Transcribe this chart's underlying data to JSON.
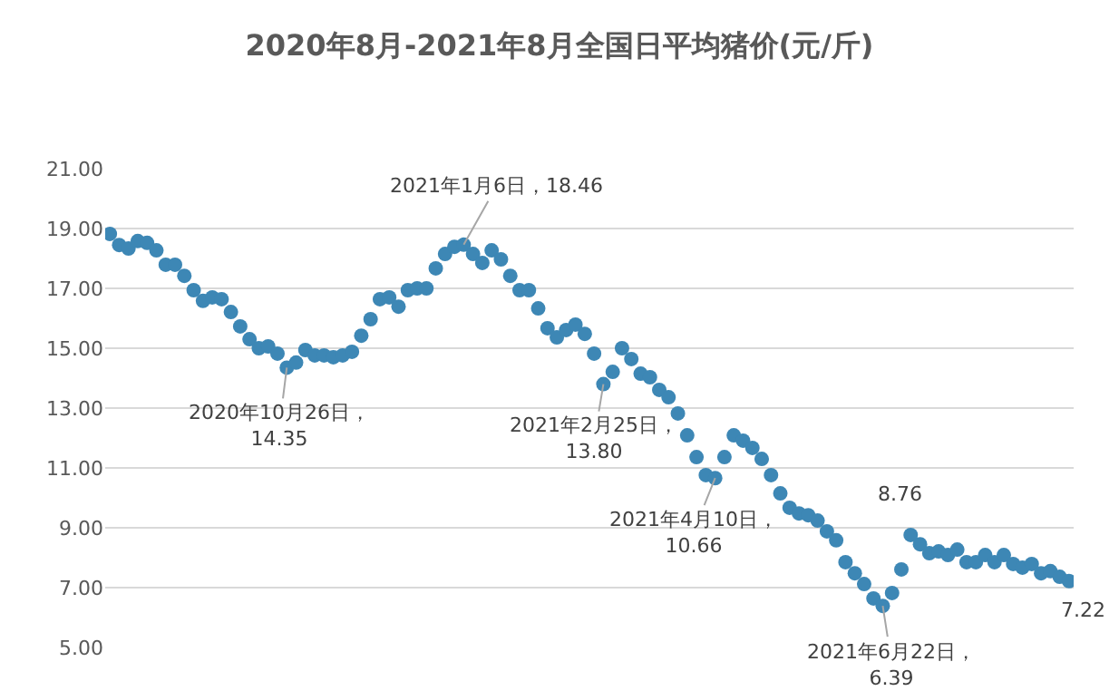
{
  "chart_data": {
    "type": "scatter",
    "title": "2020年8月-2021年8月全国日平均猪价(元/斤)",
    "categories": [
      null,
      null,
      null,
      null,
      null,
      null,
      null,
      null,
      null,
      null,
      null,
      null,
      null,
      null,
      null,
      null,
      null,
      null,
      null,
      null,
      null,
      null,
      null,
      null,
      null,
      null,
      null,
      null,
      null,
      null,
      null,
      null,
      null,
      null,
      null,
      null,
      null,
      null,
      null,
      null,
      null,
      null,
      null,
      null,
      null,
      null,
      null,
      null,
      null,
      null,
      null,
      null,
      null,
      null,
      null,
      null,
      null,
      null,
      null,
      null,
      null,
      null,
      null,
      null,
      null,
      null,
      null,
      null,
      null,
      null,
      null,
      null,
      null,
      null,
      null,
      null,
      null,
      null,
      null,
      null,
      null,
      null,
      null,
      null,
      null,
      null,
      null,
      null,
      null,
      null,
      null,
      null,
      null,
      null,
      null,
      null,
      null,
      null,
      null,
      null,
      null,
      null,
      null,
      null
    ],
    "series": [
      {
        "color": "#3d87b5",
        "values": [
          18.82,
          18.45,
          18.33,
          18.58,
          18.52,
          18.27,
          17.79,
          17.79,
          17.42,
          16.94,
          16.58,
          16.7,
          16.64,
          16.21,
          15.73,
          15.3,
          15.0,
          15.06,
          14.82,
          14.35,
          14.52,
          14.94,
          14.76,
          14.76,
          14.7,
          14.76,
          14.88,
          15.42,
          15.97,
          16.64,
          16.7,
          16.39,
          16.94,
          17.0,
          17.0,
          17.67,
          18.15,
          18.39,
          18.46,
          18.15,
          17.85,
          18.27,
          17.97,
          17.42,
          16.94,
          16.94,
          16.33,
          15.67,
          15.36,
          15.61,
          15.79,
          15.48,
          14.82,
          13.8,
          14.21,
          15.0,
          14.64,
          14.15,
          14.03,
          13.61,
          13.36,
          12.82,
          12.09,
          11.36,
          10.76,
          10.66,
          11.36,
          12.09,
          11.91,
          11.67,
          11.3,
          10.76,
          10.15,
          9.67,
          9.48,
          9.42,
          9.24,
          8.88,
          8.58,
          7.85,
          7.48,
          7.12,
          6.64,
          6.39,
          6.82,
          7.61,
          8.76,
          8.45,
          8.15,
          8.21,
          8.09,
          8.27,
          7.85,
          7.85,
          8.09,
          7.85,
          8.09,
          7.79,
          7.67,
          7.79,
          7.48,
          7.55,
          7.36,
          7.22
        ]
      }
    ],
    "ylim": [
      5,
      21
    ],
    "yticks": [
      {
        "value": 5,
        "label": "5.00"
      },
      {
        "value": 7,
        "label": "7.00"
      },
      {
        "value": 9,
        "label": "9.00"
      },
      {
        "value": 11,
        "label": "11.00"
      },
      {
        "value": 13,
        "label": "13.00"
      },
      {
        "value": 15,
        "label": "15.00"
      },
      {
        "value": 17,
        "label": "17.00"
      },
      {
        "value": 19,
        "label": "19.00"
      },
      {
        "value": 21,
        "label": "21.00"
      }
    ],
    "grid": "y",
    "marker": "circle",
    "tick_labels": "y",
    "annotations": [
      {
        "text": "2021年1月6日，18.46",
        "y": 18.46
      },
      {
        "text": "2020年10月26日，\n14.35",
        "y": 14.35
      },
      {
        "text": "2021年2月25日，\n13.80",
        "y": 13.8
      },
      {
        "text": "2021年4月10日，\n10.66",
        "y": 10.66
      },
      {
        "text": "2021年6月22日，\n6.39",
        "y": 6.39
      },
      {
        "text": "8.76",
        "y": 8.76
      },
      {
        "text": "7.22",
        "y": 7.22
      }
    ]
  }
}
